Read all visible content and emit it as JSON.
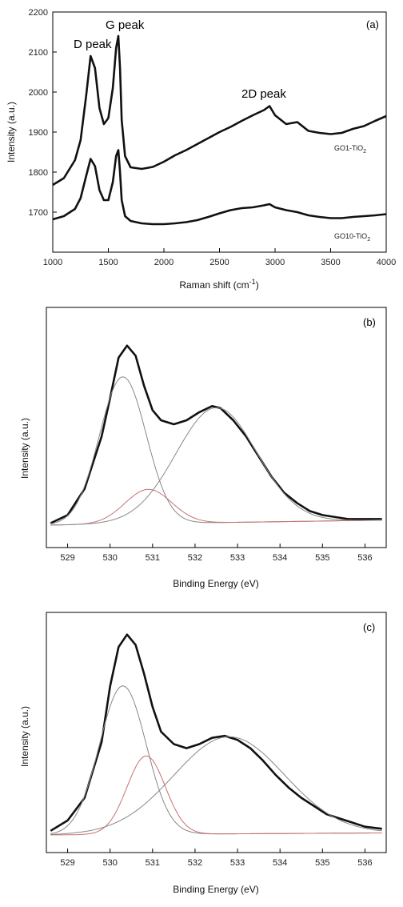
{
  "colors": {
    "main": "#111111",
    "fit_grey": "#888888",
    "fit_red": "#c87070",
    "frame": "#000000"
  },
  "chart_data": [
    {
      "type": "line",
      "panel": "(a)",
      "xlabel": "Raman shift (cm",
      "xlabel_sup": "-1",
      "xlabel_end": ")",
      "ylabel": "Intensity (a.u.)",
      "xlim": [
        1000,
        4000
      ],
      "ylim": [
        1600,
        2200
      ],
      "xticks": [
        "1000",
        "1500",
        "2000",
        "2500",
        "3000",
        "3500",
        "4000"
      ],
      "yticks": [
        "1700",
        "1800",
        "1900",
        "2000",
        "2100",
        "2200"
      ],
      "annotations": [
        "D peak",
        "G peak",
        "2D peak"
      ],
      "series": [
        {
          "name": "GO1-TiO",
          "name_sub": "2",
          "x": [
            1000,
            1100,
            1200,
            1250,
            1300,
            1340,
            1380,
            1420,
            1460,
            1500,
            1540,
            1570,
            1590,
            1605,
            1620,
            1650,
            1700,
            1800,
            1900,
            2000,
            2100,
            2200,
            2300,
            2400,
            2500,
            2600,
            2700,
            2800,
            2900,
            2950,
            3000,
            3100,
            3200,
            3300,
            3400,
            3500,
            3600,
            3700,
            3800,
            3900,
            4000
          ],
          "y": [
            1768,
            1785,
            1830,
            1880,
            1990,
            2090,
            2060,
            1960,
            1920,
            1935,
            2010,
            2110,
            2140,
            2060,
            1930,
            1840,
            1812,
            1808,
            1813,
            1826,
            1842,
            1855,
            1870,
            1885,
            1900,
            1913,
            1928,
            1942,
            1955,
            1965,
            1942,
            1920,
            1925,
            1903,
            1898,
            1895,
            1898,
            1908,
            1915,
            1928,
            1940
          ]
        },
        {
          "name": "GO10-TiO",
          "name_sub": "2",
          "x": [
            1000,
            1100,
            1200,
            1250,
            1300,
            1340,
            1380,
            1420,
            1460,
            1500,
            1540,
            1570,
            1590,
            1605,
            1620,
            1650,
            1700,
            1800,
            1900,
            2000,
            2100,
            2200,
            2300,
            2400,
            2500,
            2600,
            2700,
            2800,
            2900,
            2950,
            3000,
            3100,
            3200,
            3300,
            3400,
            3500,
            3600,
            3700,
            3800,
            3900,
            4000
          ],
          "y": [
            1682,
            1690,
            1708,
            1735,
            1790,
            1833,
            1815,
            1755,
            1730,
            1730,
            1775,
            1840,
            1855,
            1800,
            1730,
            1690,
            1678,
            1672,
            1670,
            1670,
            1672,
            1675,
            1680,
            1688,
            1697,
            1705,
            1710,
            1712,
            1717,
            1720,
            1712,
            1705,
            1700,
            1692,
            1688,
            1685,
            1685,
            1688,
            1690,
            1692,
            1695
          ]
        }
      ]
    },
    {
      "type": "line",
      "panel": "(b)",
      "xlabel": "Binding Energy (eV)",
      "ylabel": "Intensity (a.u.)",
      "xlim": [
        528.5,
        536.5
      ],
      "ylim": [
        0,
        1
      ],
      "xticks": [
        "529",
        "530",
        "531",
        "532",
        "533",
        "534",
        "535",
        "536"
      ],
      "series": [
        {
          "role": "measured",
          "x": [
            528.6,
            529.0,
            529.4,
            529.8,
            530.0,
            530.2,
            530.4,
            530.6,
            530.8,
            531.0,
            531.2,
            531.5,
            531.8,
            532.1,
            532.4,
            532.6,
            532.9,
            533.2,
            533.5,
            533.8,
            534.1,
            534.4,
            534.7,
            535.0,
            535.3,
            535.6,
            536.0,
            536.4
          ],
          "y": [
            0.01,
            0.05,
            0.18,
            0.44,
            0.63,
            0.83,
            0.89,
            0.84,
            0.69,
            0.57,
            0.52,
            0.5,
            0.52,
            0.56,
            0.59,
            0.58,
            0.52,
            0.44,
            0.34,
            0.24,
            0.16,
            0.11,
            0.07,
            0.05,
            0.04,
            0.03,
            0.03,
            0.03
          ]
        },
        {
          "role": "fit",
          "color_key": "fit_grey",
          "center": 530.3,
          "height": 0.73,
          "width": 0.55,
          "baseline_start": 0.0,
          "baseline_end": 0.025
        },
        {
          "role": "fit",
          "color_key": "fit_red",
          "center": 530.9,
          "height": 0.17,
          "width": 0.55,
          "baseline_start": 0.0,
          "baseline_end": 0.025
        },
        {
          "role": "fit",
          "color_key": "fit_grey",
          "center": 532.5,
          "height": 0.57,
          "width": 0.95,
          "baseline_start": 0.0,
          "baseline_end": 0.025
        }
      ]
    },
    {
      "type": "line",
      "panel": "(c)",
      "xlabel": "Binding Energy (eV)",
      "ylabel": "Intensity (a.u.)",
      "xlim": [
        528.5,
        536.5
      ],
      "ylim": [
        0,
        1
      ],
      "xticks": [
        "529",
        "530",
        "531",
        "532",
        "533",
        "534",
        "535",
        "536"
      ],
      "series": [
        {
          "role": "measured",
          "x": [
            528.6,
            529.0,
            529.4,
            529.8,
            530.0,
            530.2,
            530.4,
            530.6,
            530.8,
            531.0,
            531.2,
            531.5,
            531.8,
            532.1,
            532.4,
            532.7,
            533.0,
            533.3,
            533.6,
            533.9,
            534.2,
            534.5,
            534.8,
            535.1,
            535.4,
            535.7,
            536.0,
            536.4
          ],
          "y": [
            0.02,
            0.07,
            0.18,
            0.45,
            0.72,
            0.91,
            0.97,
            0.92,
            0.78,
            0.62,
            0.5,
            0.44,
            0.42,
            0.44,
            0.47,
            0.48,
            0.46,
            0.42,
            0.36,
            0.29,
            0.23,
            0.18,
            0.14,
            0.1,
            0.08,
            0.06,
            0.04,
            0.03
          ]
        },
        {
          "role": "fit",
          "color_key": "fit_grey",
          "center": 530.3,
          "height": 0.72,
          "width": 0.55,
          "baseline_start": 0.0,
          "baseline_end": 0.01
        },
        {
          "role": "fit",
          "color_key": "fit_red",
          "center": 530.85,
          "height": 0.38,
          "width": 0.45,
          "baseline_start": 0.0,
          "baseline_end": 0.01
        },
        {
          "role": "fit",
          "color_key": "fit_grey",
          "center": 532.8,
          "height": 0.47,
          "width": 1.3,
          "baseline_start": 0.0,
          "baseline_end": 0.01
        }
      ]
    }
  ]
}
